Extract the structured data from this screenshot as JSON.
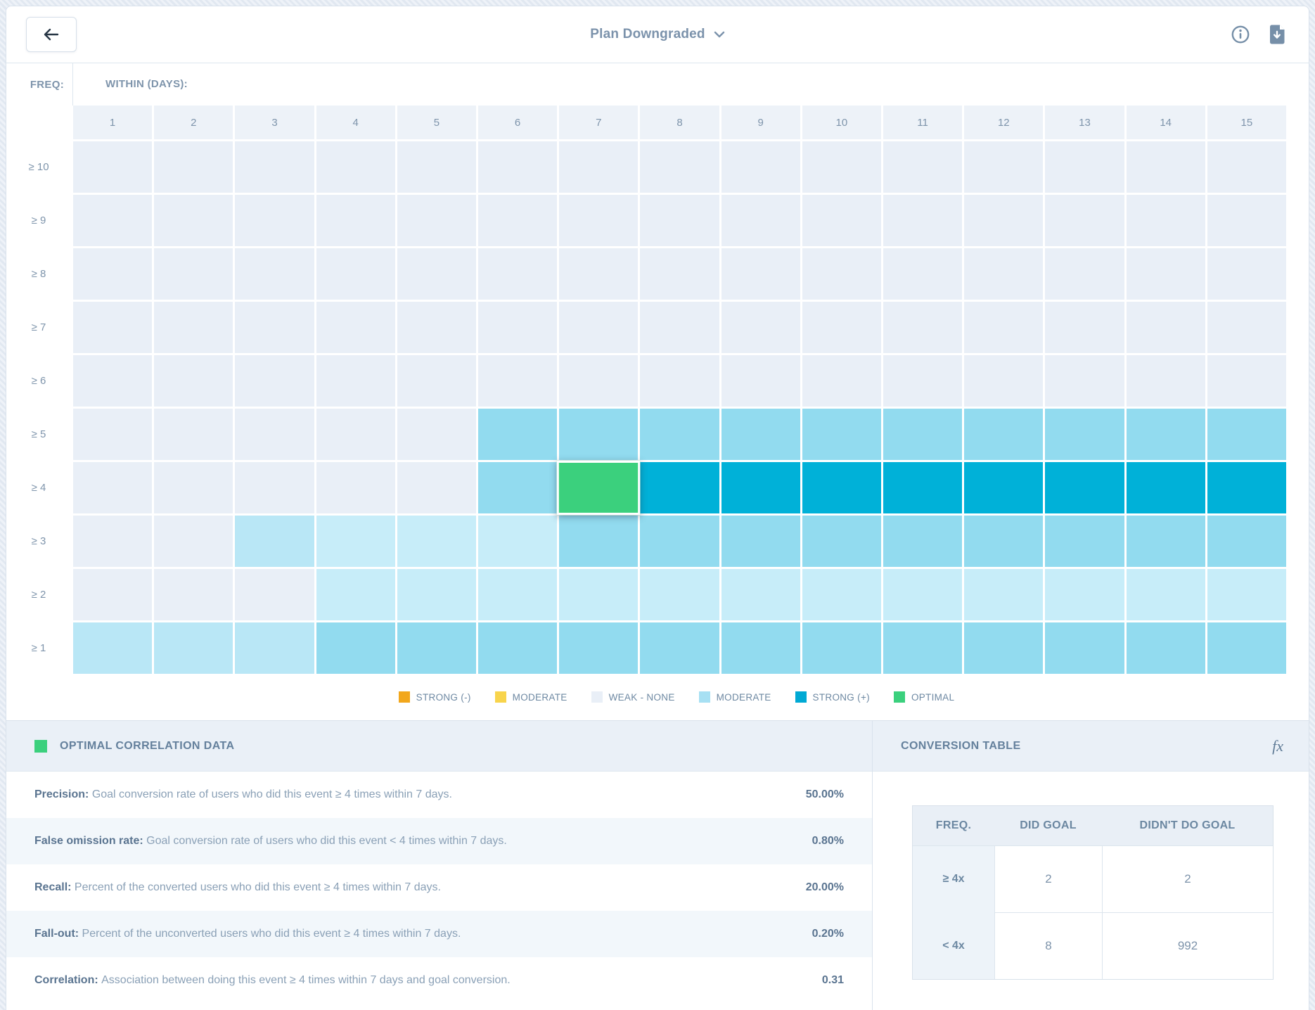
{
  "header": {
    "title": "Plan Downgraded"
  },
  "grid": {
    "freq_label": "FREQ:",
    "within_label": "WITHIN (DAYS):",
    "col_labels": [
      "1",
      "2",
      "3",
      "4",
      "5",
      "6",
      "7",
      "8",
      "9",
      "10",
      "11",
      "12",
      "13",
      "14",
      "15"
    ],
    "row_labels": [
      "≥ 10",
      "≥ 9",
      "≥ 8",
      "≥ 7",
      "≥ 6",
      "≥ 5",
      "≥ 4",
      "≥ 3",
      "≥ 2",
      "≥ 1"
    ]
  },
  "chart_data": {
    "type": "heatmap",
    "title": "Plan Downgraded",
    "xlabel": "WITHIN (DAYS):",
    "ylabel": "FREQ:",
    "columns": [
      1,
      2,
      3,
      4,
      5,
      6,
      7,
      8,
      9,
      10,
      11,
      12,
      13,
      14,
      15
    ],
    "rows": [
      "≥ 10",
      "≥ 9",
      "≥ 8",
      "≥ 7",
      "≥ 6",
      "≥ 5",
      "≥ 4",
      "≥ 3",
      "≥ 2",
      "≥ 1"
    ],
    "level_codes": {
      "0": "weak-none",
      "1": "weak-light",
      "2": "weak-lighter",
      "m": "moderate-positive",
      "s": "strong-positive",
      "g": "optimal"
    },
    "cells": [
      [
        "0",
        "0",
        "0",
        "0",
        "0",
        "0",
        "0",
        "0",
        "0",
        "0",
        "0",
        "0",
        "0",
        "0",
        "0"
      ],
      [
        "0",
        "0",
        "0",
        "0",
        "0",
        "0",
        "0",
        "0",
        "0",
        "0",
        "0",
        "0",
        "0",
        "0",
        "0"
      ],
      [
        "0",
        "0",
        "0",
        "0",
        "0",
        "0",
        "0",
        "0",
        "0",
        "0",
        "0",
        "0",
        "0",
        "0",
        "0"
      ],
      [
        "0",
        "0",
        "0",
        "0",
        "0",
        "0",
        "0",
        "0",
        "0",
        "0",
        "0",
        "0",
        "0",
        "0",
        "0"
      ],
      [
        "0",
        "0",
        "0",
        "0",
        "0",
        "0",
        "0",
        "0",
        "0",
        "0",
        "0",
        "0",
        "0",
        "0",
        "0"
      ],
      [
        "0",
        "0",
        "0",
        "0",
        "0",
        "m",
        "m",
        "m",
        "m",
        "m",
        "m",
        "m",
        "m",
        "m",
        "m"
      ],
      [
        "0",
        "0",
        "0",
        "0",
        "0",
        "m",
        "g",
        "s",
        "s",
        "s",
        "s",
        "s",
        "s",
        "s",
        "s"
      ],
      [
        "0",
        "0",
        "1",
        "2",
        "2",
        "2",
        "m",
        "m",
        "m",
        "m",
        "m",
        "m",
        "m",
        "m",
        "m"
      ],
      [
        "0",
        "0",
        "0",
        "2",
        "2",
        "2",
        "2",
        "2",
        "2",
        "2",
        "2",
        "2",
        "2",
        "2",
        "2"
      ],
      [
        "1",
        "1",
        "1",
        "m",
        "m",
        "m",
        "m",
        "m",
        "m",
        "m",
        "m",
        "m",
        "m",
        "m",
        "m"
      ]
    ],
    "selected_cell": {
      "row": "≥ 4",
      "column": 7,
      "level": "optimal"
    }
  },
  "colors": {
    "strong_negative": "#f2a71c",
    "moderate_negative": "#f8d44c",
    "weak_none": "#e9eff7",
    "weak_light": "#b9e7f6",
    "weak_lighter": "#c7edf9",
    "moderate_positive": "#92dbef",
    "strong_positive": "#00b1d8",
    "optimal": "#3bd07d"
  },
  "legend": {
    "items": [
      {
        "label": "STRONG (-)",
        "color": "#f2a71c",
        "pattern": "solid"
      },
      {
        "label": "MODERATE",
        "color": "#f8d44c",
        "pattern": "solid"
      },
      {
        "label": "WEAK - NONE",
        "color": "#e9eff7",
        "pattern": "solid"
      },
      {
        "label": "MODERATE",
        "color": "#a7e0f3",
        "pattern": "dots"
      },
      {
        "label": "STRONG (+)",
        "color": "#00a9d4",
        "pattern": "solid"
      },
      {
        "label": "OPTIMAL",
        "color": "#3bd07d",
        "pattern": "solid"
      }
    ]
  },
  "optimal_panel": {
    "title": "OPTIMAL CORRELATION DATA",
    "metrics": [
      {
        "label": "Precision:",
        "description": "Goal conversion rate of users who did this event ≥ 4 times within 7 days.",
        "value": "50.00%"
      },
      {
        "label": "False omission rate:",
        "description": "Goal conversion rate of users who did this event < 4 times within 7 days.",
        "value": "0.80%"
      },
      {
        "label": "Recall:",
        "description": "Percent of the converted users who did this event ≥ 4 times within 7 days.",
        "value": "20.00%"
      },
      {
        "label": "Fall-out:",
        "description": "Percent of the unconverted users who did this event ≥ 4 times within 7 days.",
        "value": "0.20%"
      },
      {
        "label": "Correlation:",
        "description": "Association between doing this event ≥ 4 times within 7 days and goal conversion.",
        "value": "0.31"
      }
    ]
  },
  "conversion_panel": {
    "title": "CONVERSION TABLE",
    "table": {
      "headers": [
        "FREQ.",
        "DID GOAL",
        "DIDN'T DO GOAL"
      ],
      "rows": [
        {
          "freq": "≥ 4x",
          "did": "2",
          "didnt": "2"
        },
        {
          "freq": "< 4x",
          "did": "8",
          "didnt": "992"
        }
      ]
    }
  }
}
